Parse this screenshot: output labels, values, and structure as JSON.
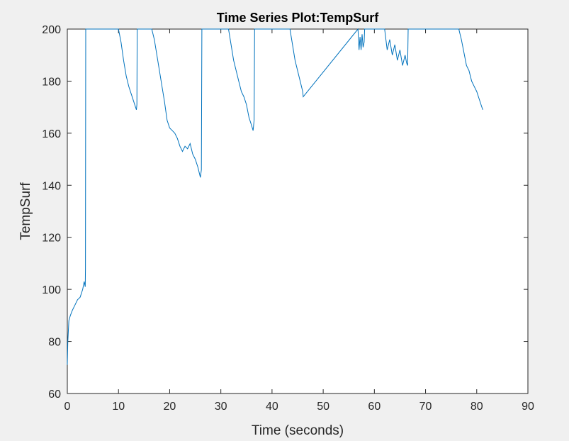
{
  "chart_data": {
    "type": "line",
    "title": "Time Series Plot:TempSurf",
    "xlabel": "Time (seconds)",
    "ylabel": "TempSurf",
    "xlim": [
      0,
      90
    ],
    "ylim": [
      60,
      200
    ],
    "x_ticks": [
      0,
      10,
      20,
      30,
      40,
      50,
      60,
      70,
      80,
      90
    ],
    "y_ticks": [
      60,
      80,
      100,
      120,
      140,
      160,
      180,
      200
    ],
    "grid": false,
    "legend": "none",
    "line_color": "#0072bd",
    "series": [
      {
        "x": [
          0,
          0.1,
          0.3,
          0.6,
          1.0,
          1.5,
          2.0,
          2.5,
          3.0,
          3.3,
          3.5,
          3.55,
          3.6,
          10.0,
          10.5,
          11.0,
          11.5,
          12.0,
          12.5,
          13.0,
          13.5,
          13.6,
          13.65,
          16.5,
          17.0,
          17.5,
          18.0,
          18.5,
          19.0,
          19.5,
          20.0,
          20.5,
          21.0,
          21.5,
          22.0,
          22.5,
          23.0,
          23.5,
          24.0,
          24.5,
          25.0,
          25.5,
          26.0,
          26.2,
          26.3,
          31.5,
          32.0,
          32.5,
          33.0,
          33.5,
          34.0,
          34.5,
          35.0,
          35.5,
          36.0,
          36.3,
          36.5,
          36.6,
          43.5,
          44.0,
          44.5,
          45.0,
          45.5,
          46.0,
          46.1,
          56.8,
          57.0,
          57.2,
          57.4,
          57.6,
          57.8,
          58.0,
          58.1,
          62.0,
          62.5,
          63.0,
          63.5,
          64.0,
          64.5,
          65.0,
          65.5,
          66.0,
          66.3,
          66.5,
          66.6,
          76.5,
          77.0,
          77.5,
          78.0,
          78.5,
          79.0,
          79.5,
          80.0,
          80.5,
          81.0,
          81.2
        ],
        "y": [
          71,
          80,
          88,
          90,
          92,
          94,
          96,
          97,
          100,
          103,
          101,
          108,
          200,
          200,
          195,
          188,
          182,
          178,
          175,
          172,
          169,
          171,
          200,
          200,
          196,
          190,
          184,
          178,
          172,
          165,
          162,
          161,
          160,
          158,
          155,
          153,
          155,
          154,
          156,
          152,
          150,
          147,
          143,
          146,
          200,
          200,
          194,
          188,
          184,
          180,
          176,
          174,
          171,
          166,
          163,
          161,
          165,
          200,
          200,
          194,
          188,
          184,
          180,
          176,
          174,
          200,
          192,
          197,
          192,
          198,
          193,
          195,
          200,
          200,
          192,
          196,
          190,
          194,
          188,
          192,
          186,
          190,
          187,
          186,
          200,
          200,
          196,
          191,
          186,
          184,
          180,
          178,
          176,
          173,
          170,
          169
        ]
      }
    ]
  }
}
